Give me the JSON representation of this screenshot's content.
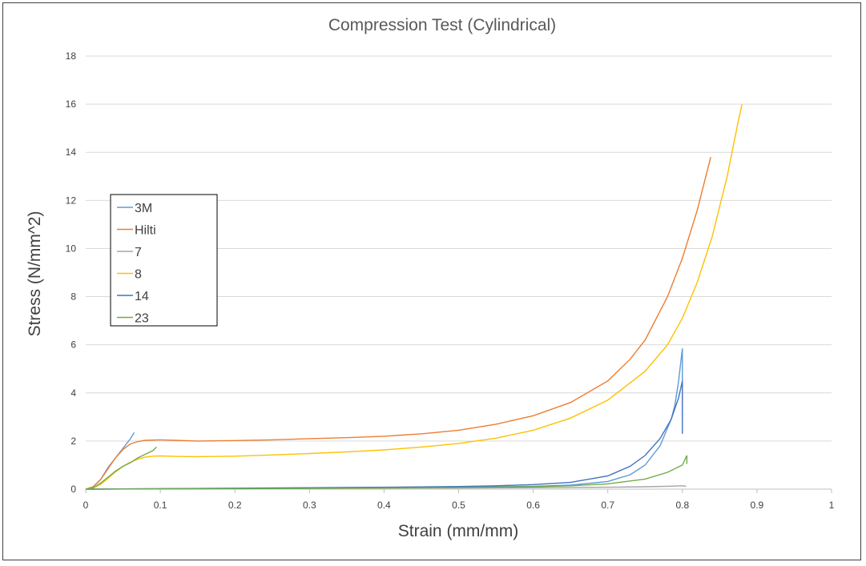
{
  "chart_data": {
    "type": "line",
    "title": "Compression Test (Cylindrical)",
    "xlabel": "Strain (mm/mm)",
    "ylabel": "Stress (N/mm^2)",
    "xlim": [
      0,
      1
    ],
    "ylim": [
      0,
      18
    ],
    "xticks": [
      "0",
      "0.1",
      "0.2",
      "0.3",
      "0.4",
      "0.5",
      "0.6",
      "0.7",
      "0.8",
      "0.9",
      "1"
    ],
    "yticks": [
      "0",
      "2",
      "4",
      "6",
      "8",
      "10",
      "12",
      "14",
      "16",
      "18"
    ],
    "grid": true,
    "legend_position": "left",
    "series": [
      {
        "name": "3M",
        "color": "#5b9bd5",
        "segments": [
          [
            [
              0.0,
              0.0
            ],
            [
              0.01,
              0.1
            ],
            [
              0.02,
              0.4
            ],
            [
              0.03,
              0.9
            ],
            [
              0.04,
              1.3
            ],
            [
              0.05,
              1.7
            ],
            [
              0.06,
              2.1
            ],
            [
              0.065,
              2.35
            ]
          ],
          [
            [
              0.0,
              0.0
            ],
            [
              0.1,
              0.02
            ],
            [
              0.2,
              0.03
            ],
            [
              0.3,
              0.05
            ],
            [
              0.4,
              0.06
            ],
            [
              0.5,
              0.08
            ],
            [
              0.6,
              0.12
            ],
            [
              0.65,
              0.17
            ],
            [
              0.7,
              0.32
            ],
            [
              0.73,
              0.6
            ],
            [
              0.75,
              1.0
            ],
            [
              0.77,
              1.8
            ],
            [
              0.785,
              2.9
            ],
            [
              0.79,
              3.5
            ],
            [
              0.795,
              4.5
            ],
            [
              0.8,
              5.85
            ],
            [
              0.8,
              3.0
            ]
          ]
        ]
      },
      {
        "name": "Hilti",
        "color": "#ed7d31",
        "segments": [
          [
            [
              0.0,
              0.0
            ],
            [
              0.01,
              0.1
            ],
            [
              0.02,
              0.4
            ],
            [
              0.03,
              0.85
            ],
            [
              0.04,
              1.3
            ],
            [
              0.05,
              1.65
            ],
            [
              0.06,
              1.88
            ],
            [
              0.07,
              1.98
            ],
            [
              0.08,
              2.03
            ],
            [
              0.1,
              2.05
            ],
            [
              0.12,
              2.03
            ],
            [
              0.15,
              2.0
            ],
            [
              0.2,
              2.02
            ],
            [
              0.25,
              2.05
            ],
            [
              0.3,
              2.1
            ],
            [
              0.35,
              2.14
            ],
            [
              0.4,
              2.2
            ],
            [
              0.45,
              2.3
            ],
            [
              0.5,
              2.45
            ],
            [
              0.55,
              2.7
            ],
            [
              0.6,
              3.05
            ],
            [
              0.65,
              3.6
            ],
            [
              0.7,
              4.5
            ],
            [
              0.73,
              5.4
            ],
            [
              0.75,
              6.2
            ],
            [
              0.78,
              8.0
            ],
            [
              0.8,
              9.6
            ],
            [
              0.82,
              11.6
            ],
            [
              0.838,
              13.8
            ]
          ]
        ]
      },
      {
        "name": "7",
        "color": "#a5a5a5",
        "segments": [
          [
            [
              0.0,
              0.0
            ],
            [
              0.1,
              0.01
            ],
            [
              0.2,
              0.02
            ],
            [
              0.3,
              0.03
            ],
            [
              0.4,
              0.04
            ],
            [
              0.5,
              0.05
            ],
            [
              0.6,
              0.06
            ],
            [
              0.7,
              0.08
            ],
            [
              0.75,
              0.1
            ],
            [
              0.78,
              0.12
            ],
            [
              0.8,
              0.14
            ],
            [
              0.805,
              0.12
            ]
          ]
        ]
      },
      {
        "name": "8",
        "color": "#ffc000",
        "segments": [
          [
            [
              0.0,
              0.0
            ],
            [
              0.01,
              0.05
            ],
            [
              0.02,
              0.2
            ],
            [
              0.03,
              0.45
            ],
            [
              0.04,
              0.72
            ],
            [
              0.05,
              0.95
            ],
            [
              0.06,
              1.12
            ],
            [
              0.07,
              1.25
            ],
            [
              0.08,
              1.33
            ],
            [
              0.09,
              1.37
            ],
            [
              0.1,
              1.38
            ],
            [
              0.12,
              1.36
            ],
            [
              0.15,
              1.35
            ],
            [
              0.2,
              1.37
            ],
            [
              0.25,
              1.42
            ],
            [
              0.3,
              1.48
            ],
            [
              0.35,
              1.55
            ],
            [
              0.4,
              1.63
            ],
            [
              0.45,
              1.75
            ],
            [
              0.5,
              1.9
            ],
            [
              0.55,
              2.12
            ],
            [
              0.6,
              2.45
            ],
            [
              0.65,
              2.95
            ],
            [
              0.7,
              3.7
            ],
            [
              0.75,
              4.9
            ],
            [
              0.78,
              6.0
            ],
            [
              0.8,
              7.1
            ],
            [
              0.82,
              8.6
            ],
            [
              0.84,
              10.5
            ],
            [
              0.86,
              13.0
            ],
            [
              0.875,
              15.3
            ],
            [
              0.88,
              16.0
            ]
          ]
        ]
      },
      {
        "name": "14",
        "color": "#4472c4",
        "segments": [
          [
            [
              0.0,
              0.0
            ],
            [
              0.1,
              0.02
            ],
            [
              0.2,
              0.04
            ],
            [
              0.3,
              0.06
            ],
            [
              0.4,
              0.08
            ],
            [
              0.5,
              0.11
            ],
            [
              0.55,
              0.14
            ],
            [
              0.6,
              0.19
            ],
            [
              0.65,
              0.28
            ],
            [
              0.7,
              0.55
            ],
            [
              0.73,
              0.95
            ],
            [
              0.75,
              1.4
            ],
            [
              0.77,
              2.1
            ],
            [
              0.785,
              2.9
            ],
            [
              0.795,
              3.8
            ],
            [
              0.8,
              4.5
            ],
            [
              0.8,
              2.3
            ]
          ]
        ]
      },
      {
        "name": "23",
        "color": "#70ad47",
        "segments": [
          [
            [
              0.0,
              0.0
            ],
            [
              0.01,
              0.05
            ],
            [
              0.02,
              0.25
            ],
            [
              0.03,
              0.5
            ],
            [
              0.04,
              0.75
            ],
            [
              0.05,
              0.95
            ],
            [
              0.06,
              1.1
            ],
            [
              0.07,
              1.3
            ],
            [
              0.08,
              1.45
            ],
            [
              0.09,
              1.6
            ],
            [
              0.095,
              1.75
            ]
          ],
          [
            [
              0.0,
              0.0
            ],
            [
              0.1,
              0.01
            ],
            [
              0.2,
              0.02
            ],
            [
              0.3,
              0.03
            ],
            [
              0.4,
              0.05
            ],
            [
              0.5,
              0.07
            ],
            [
              0.6,
              0.1
            ],
            [
              0.65,
              0.14
            ],
            [
              0.7,
              0.22
            ],
            [
              0.75,
              0.42
            ],
            [
              0.78,
              0.7
            ],
            [
              0.8,
              1.0
            ],
            [
              0.806,
              1.4
            ],
            [
              0.806,
              1.05
            ]
          ]
        ]
      }
    ]
  }
}
